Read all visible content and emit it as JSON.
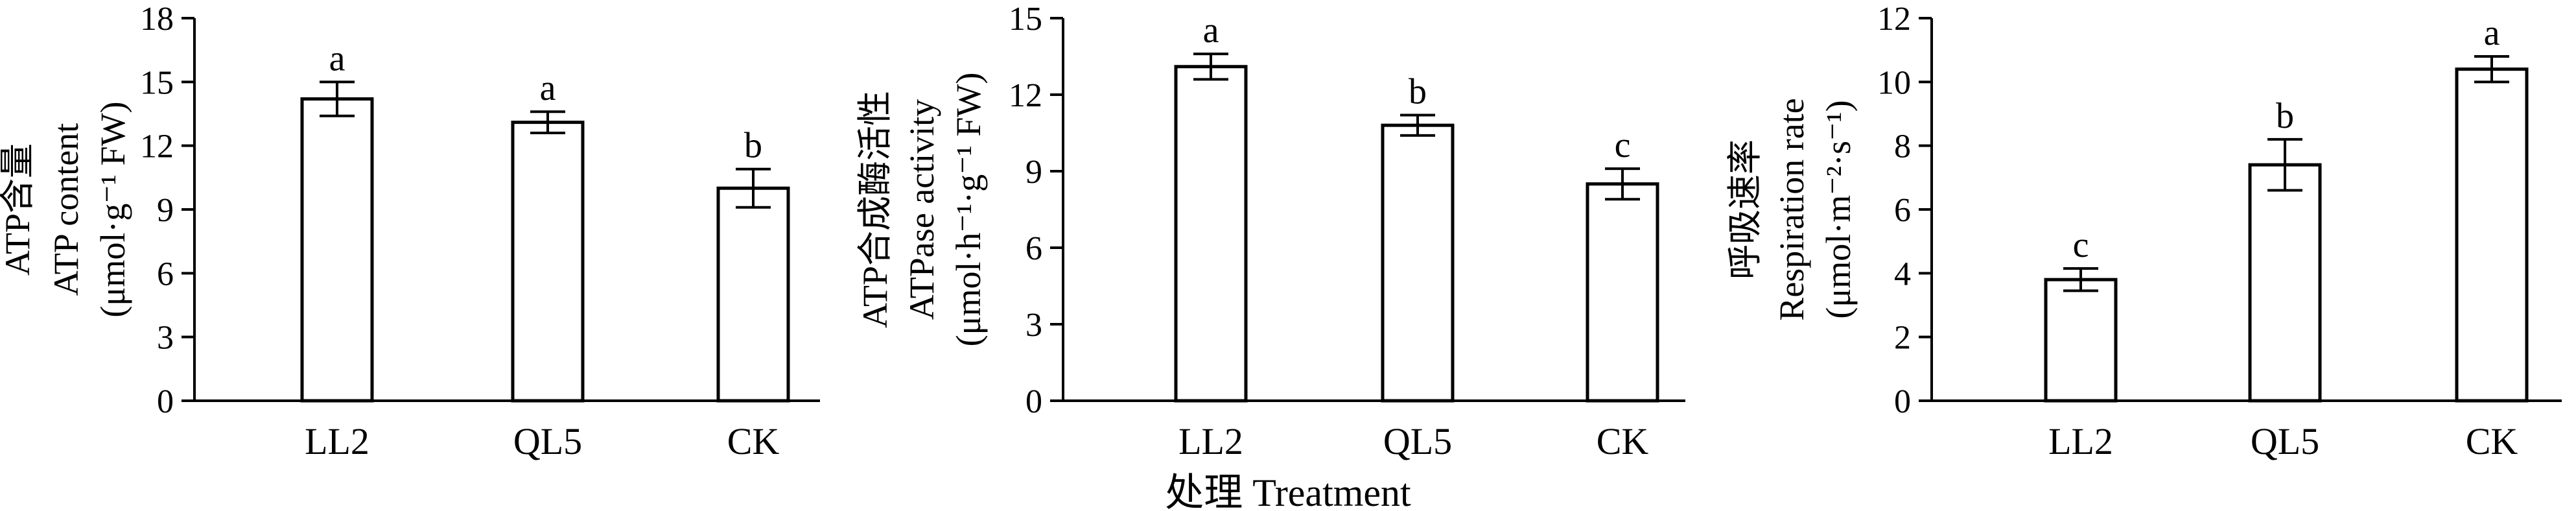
{
  "chart_data": [
    {
      "type": "bar",
      "categories": [
        "LL2",
        "QL5",
        "CK"
      ],
      "values": [
        14.2,
        13.1,
        10.0
      ],
      "errors": [
        0.8,
        0.5,
        0.9
      ],
      "significance": [
        "a",
        "a",
        "b"
      ],
      "ylabel_lines": [
        "ATP含量",
        "ATP content",
        "(μmol·g⁻¹ FW)"
      ],
      "ylim": [
        0,
        18
      ],
      "yticks": [
        0,
        3,
        6,
        9,
        12,
        15,
        18
      ]
    },
    {
      "type": "bar",
      "categories": [
        "LL2",
        "QL5",
        "CK"
      ],
      "values": [
        13.1,
        10.8,
        8.5
      ],
      "errors": [
        0.5,
        0.4,
        0.6
      ],
      "significance": [
        "a",
        "b",
        "c"
      ],
      "ylabel_lines": [
        "ATP合成酶活性",
        "ATPase activity",
        "(μmol·h⁻¹·g⁻¹ FW)"
      ],
      "ylim": [
        0,
        15
      ],
      "yticks": [
        0,
        3,
        6,
        9,
        12,
        15
      ]
    },
    {
      "type": "bar",
      "categories": [
        "LL2",
        "QL5",
        "CK"
      ],
      "values": [
        3.8,
        7.4,
        10.4
      ],
      "errors": [
        0.35,
        0.8,
        0.4
      ],
      "significance": [
        "c",
        "b",
        "a"
      ],
      "ylabel_lines": [
        "呼吸速率",
        "Respiration rate",
        "(μmol·m⁻²·s⁻¹)"
      ],
      "ylim": [
        0,
        12
      ],
      "yticks": [
        0,
        2,
        4,
        6,
        8,
        10,
        12
      ]
    }
  ],
  "xlabel": "处理 Treatment"
}
